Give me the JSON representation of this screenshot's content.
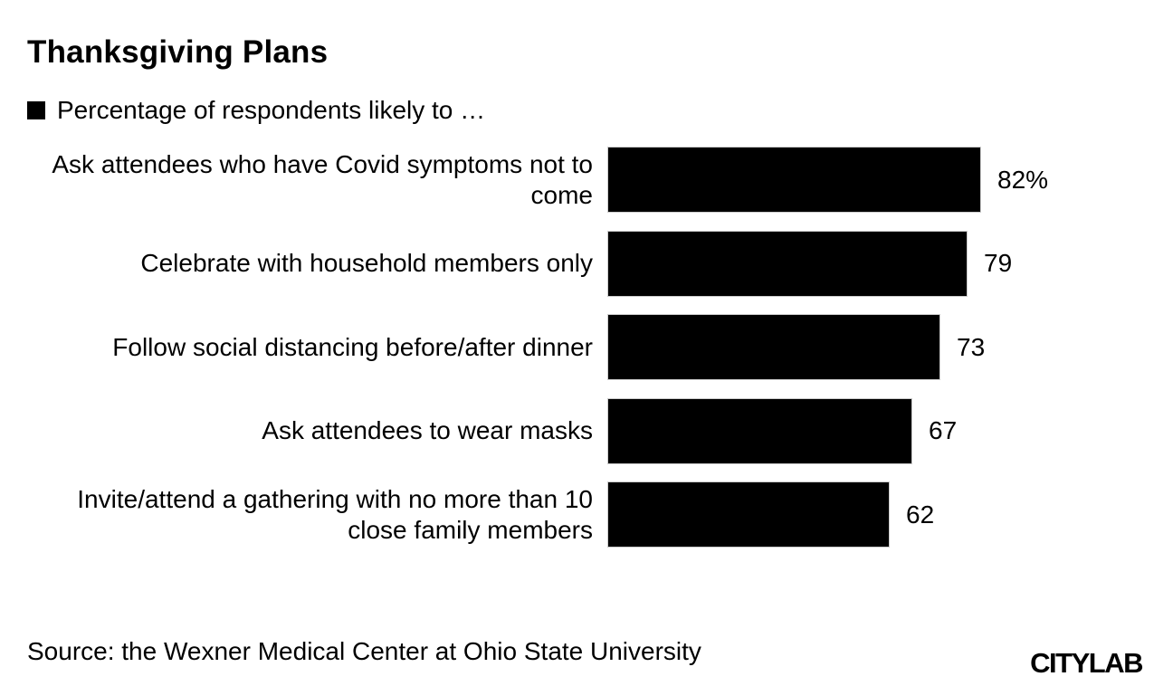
{
  "page": {
    "title": "Thanksgiving Plans",
    "legend": {
      "swatch_color": "#000000",
      "label": "Percentage of respondents likely to …"
    },
    "footer": {
      "source": "Source: the Wexner Medical Center at Ohio State University",
      "brand": "CITYLAB"
    }
  },
  "chart_data": {
    "type": "bar",
    "orientation": "horizontal",
    "title": "Thanksgiving Plans",
    "subtitle": "Percentage of respondents likely to …",
    "categories": [
      "Ask attendees who have Covid symptoms not to come",
      "Celebrate with household members only",
      "Follow social distancing before/after dinner",
      "Ask attendees to wear masks",
      "Invite/attend a gathering with no more than 10 close family members"
    ],
    "category_lines": [
      [
        "Ask attendees who have Covid symptoms not to",
        "come"
      ],
      [
        "Celebrate with household members only"
      ],
      [
        "Follow social distancing before/after dinner"
      ],
      [
        "Ask attendees to wear masks"
      ],
      [
        "Invite/attend a gathering with no more than 10",
        "close family members"
      ]
    ],
    "values": [
      82,
      79,
      73,
      67,
      62
    ],
    "value_labels": [
      "82%",
      "79",
      "73",
      "67",
      "62"
    ],
    "unit": "percent",
    "xlim": [
      0,
      100
    ],
    "bar_color": "#000000",
    "bar_border_color": "#cccccc",
    "grid": false,
    "axis_shown": false,
    "legend_position": "top-left",
    "source": "Source: the Wexner Medical Center at Ohio State University",
    "brand": "CITYLAB"
  }
}
